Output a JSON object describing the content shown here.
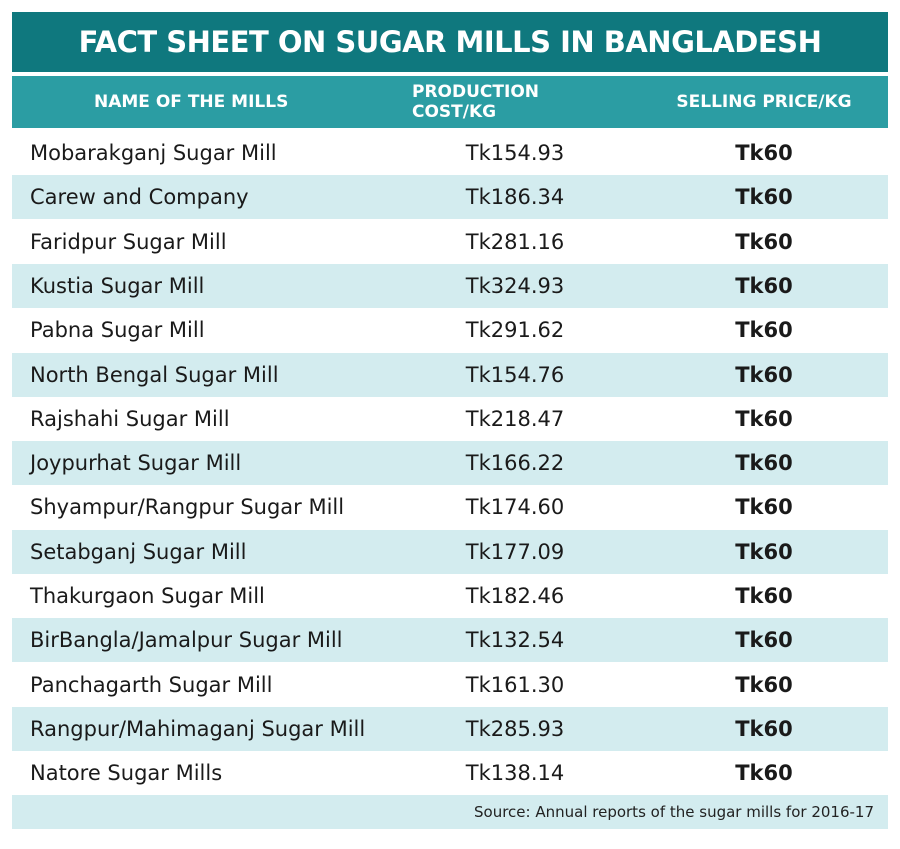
{
  "header": {
    "title": "FACT SHEET ON SUGAR MILLS IN BANGLADESH"
  },
  "table": {
    "columns": [
      "NAME OF THE MILLS",
      "PRODUCTION COST/KG",
      "SELLING PRICE/KG"
    ],
    "rows": [
      [
        "Mobarakganj Sugar Mill",
        "Tk154.93",
        "Tk60"
      ],
      [
        "Carew and Company",
        "Tk186.34",
        "Tk60"
      ],
      [
        "Faridpur Sugar Mill",
        "Tk281.16",
        "Tk60"
      ],
      [
        "Kustia Sugar Mill",
        "Tk324.93",
        "Tk60"
      ],
      [
        "Pabna Sugar Mill",
        "Tk291.62",
        "Tk60"
      ],
      [
        "North Bengal Sugar Mill",
        "Tk154.76",
        "Tk60"
      ],
      [
        "Rajshahi Sugar Mill",
        "Tk218.47",
        "Tk60"
      ],
      [
        "Joypurhat Sugar Mill",
        "Tk166.22",
        "Tk60"
      ],
      [
        "Shyampur/Rangpur Sugar Mill",
        "Tk174.60",
        "Tk60"
      ],
      [
        "Setabganj Sugar Mill",
        "Tk177.09",
        "Tk60"
      ],
      [
        "Thakurgaon Sugar Mill",
        "Tk182.46",
        "Tk60"
      ],
      [
        "BirBangla/Jamalpur Sugar Mill",
        "Tk132.54",
        "Tk60"
      ],
      [
        "Panchagarth Sugar Mill",
        "Tk161.30",
        "Tk60"
      ],
      [
        "Rangpur/Mahimaganj Sugar Mill",
        "Tk285.93",
        "Tk60"
      ],
      [
        "Natore Sugar Mills",
        "Tk138.14",
        "Tk60"
      ]
    ]
  },
  "footer": {
    "source": "Source: Annual reports of the sugar mills for 2016-17"
  }
}
